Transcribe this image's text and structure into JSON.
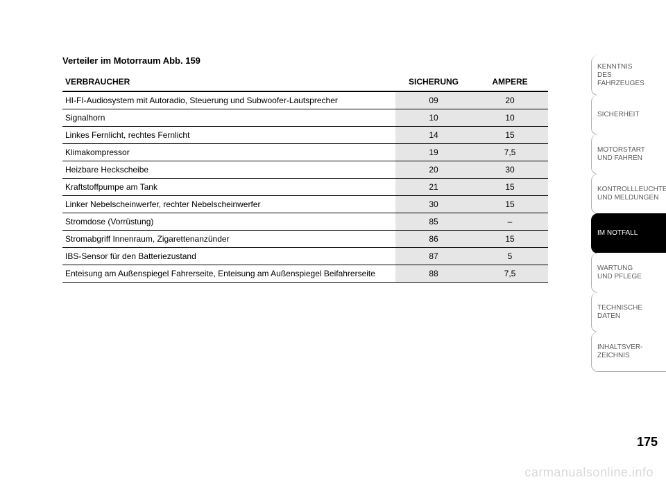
{
  "title": "Verteiler im Motorraum Abb. 159",
  "table": {
    "columns": [
      "VERBRAUCHER",
      "SICHERUNG",
      "AMPERE"
    ],
    "rows": [
      [
        "HI-FI-Audiosystem mit Autoradio, Steuerung und Subwoofer-Lautsprecher",
        "09",
        "20"
      ],
      [
        "Signalhorn",
        "10",
        "10"
      ],
      [
        "Linkes Fernlicht, rechtes Fernlicht",
        "14",
        "15"
      ],
      [
        "Klimakompressor",
        "19",
        "7,5"
      ],
      [
        "Heizbare Heckscheibe",
        "20",
        "30"
      ],
      [
        "Kraftstoffpumpe am Tank",
        "21",
        "15"
      ],
      [
        "Linker Nebelscheinwerfer, rechter Nebelscheinwerfer",
        "30",
        "15"
      ],
      [
        "Stromdose (Vorrüstung)",
        "85",
        "–"
      ],
      [
        "Stromabgriff Innenraum, Zigarettenanzünder",
        "86",
        "15"
      ],
      [
        "IBS-Sensor für den Batteriezustand",
        "87",
        "5"
      ],
      [
        "Enteisung am Außenspiegel Fahrerseite, Enteisung am Außenspiegel Beifahrerseite",
        "88",
        "7,5"
      ]
    ],
    "header_bg": "#ffffff",
    "fuse_col_bg": "#e6e6e6",
    "border_color": "#000000",
    "font_size": 12
  },
  "sidebar": {
    "tabs": [
      {
        "label": "KENNTNIS\nDES FAHRZEUGES",
        "active": false
      },
      {
        "label": "SICHERHEIT",
        "active": false
      },
      {
        "label": "MOTORSTART\nUND FAHREN",
        "active": false
      },
      {
        "label": "KONTROLLLEUCHTEN\nUND MELDUNGEN",
        "active": false
      },
      {
        "label": "IM NOTFALL",
        "active": true
      },
      {
        "label": "WARTUNG\nUND PFLEGE",
        "active": false
      },
      {
        "label": "TECHNISCHE\nDATEN",
        "active": false
      },
      {
        "label": "INHALTSVER-\nZEICHNIS",
        "active": false
      }
    ],
    "active_bg": "#000000",
    "active_fg": "#ffffff",
    "inactive_fg": "#5a5a5a",
    "border_color": "#b0b0b0"
  },
  "page_number": "175",
  "watermark": "carmanualsonline.info"
}
